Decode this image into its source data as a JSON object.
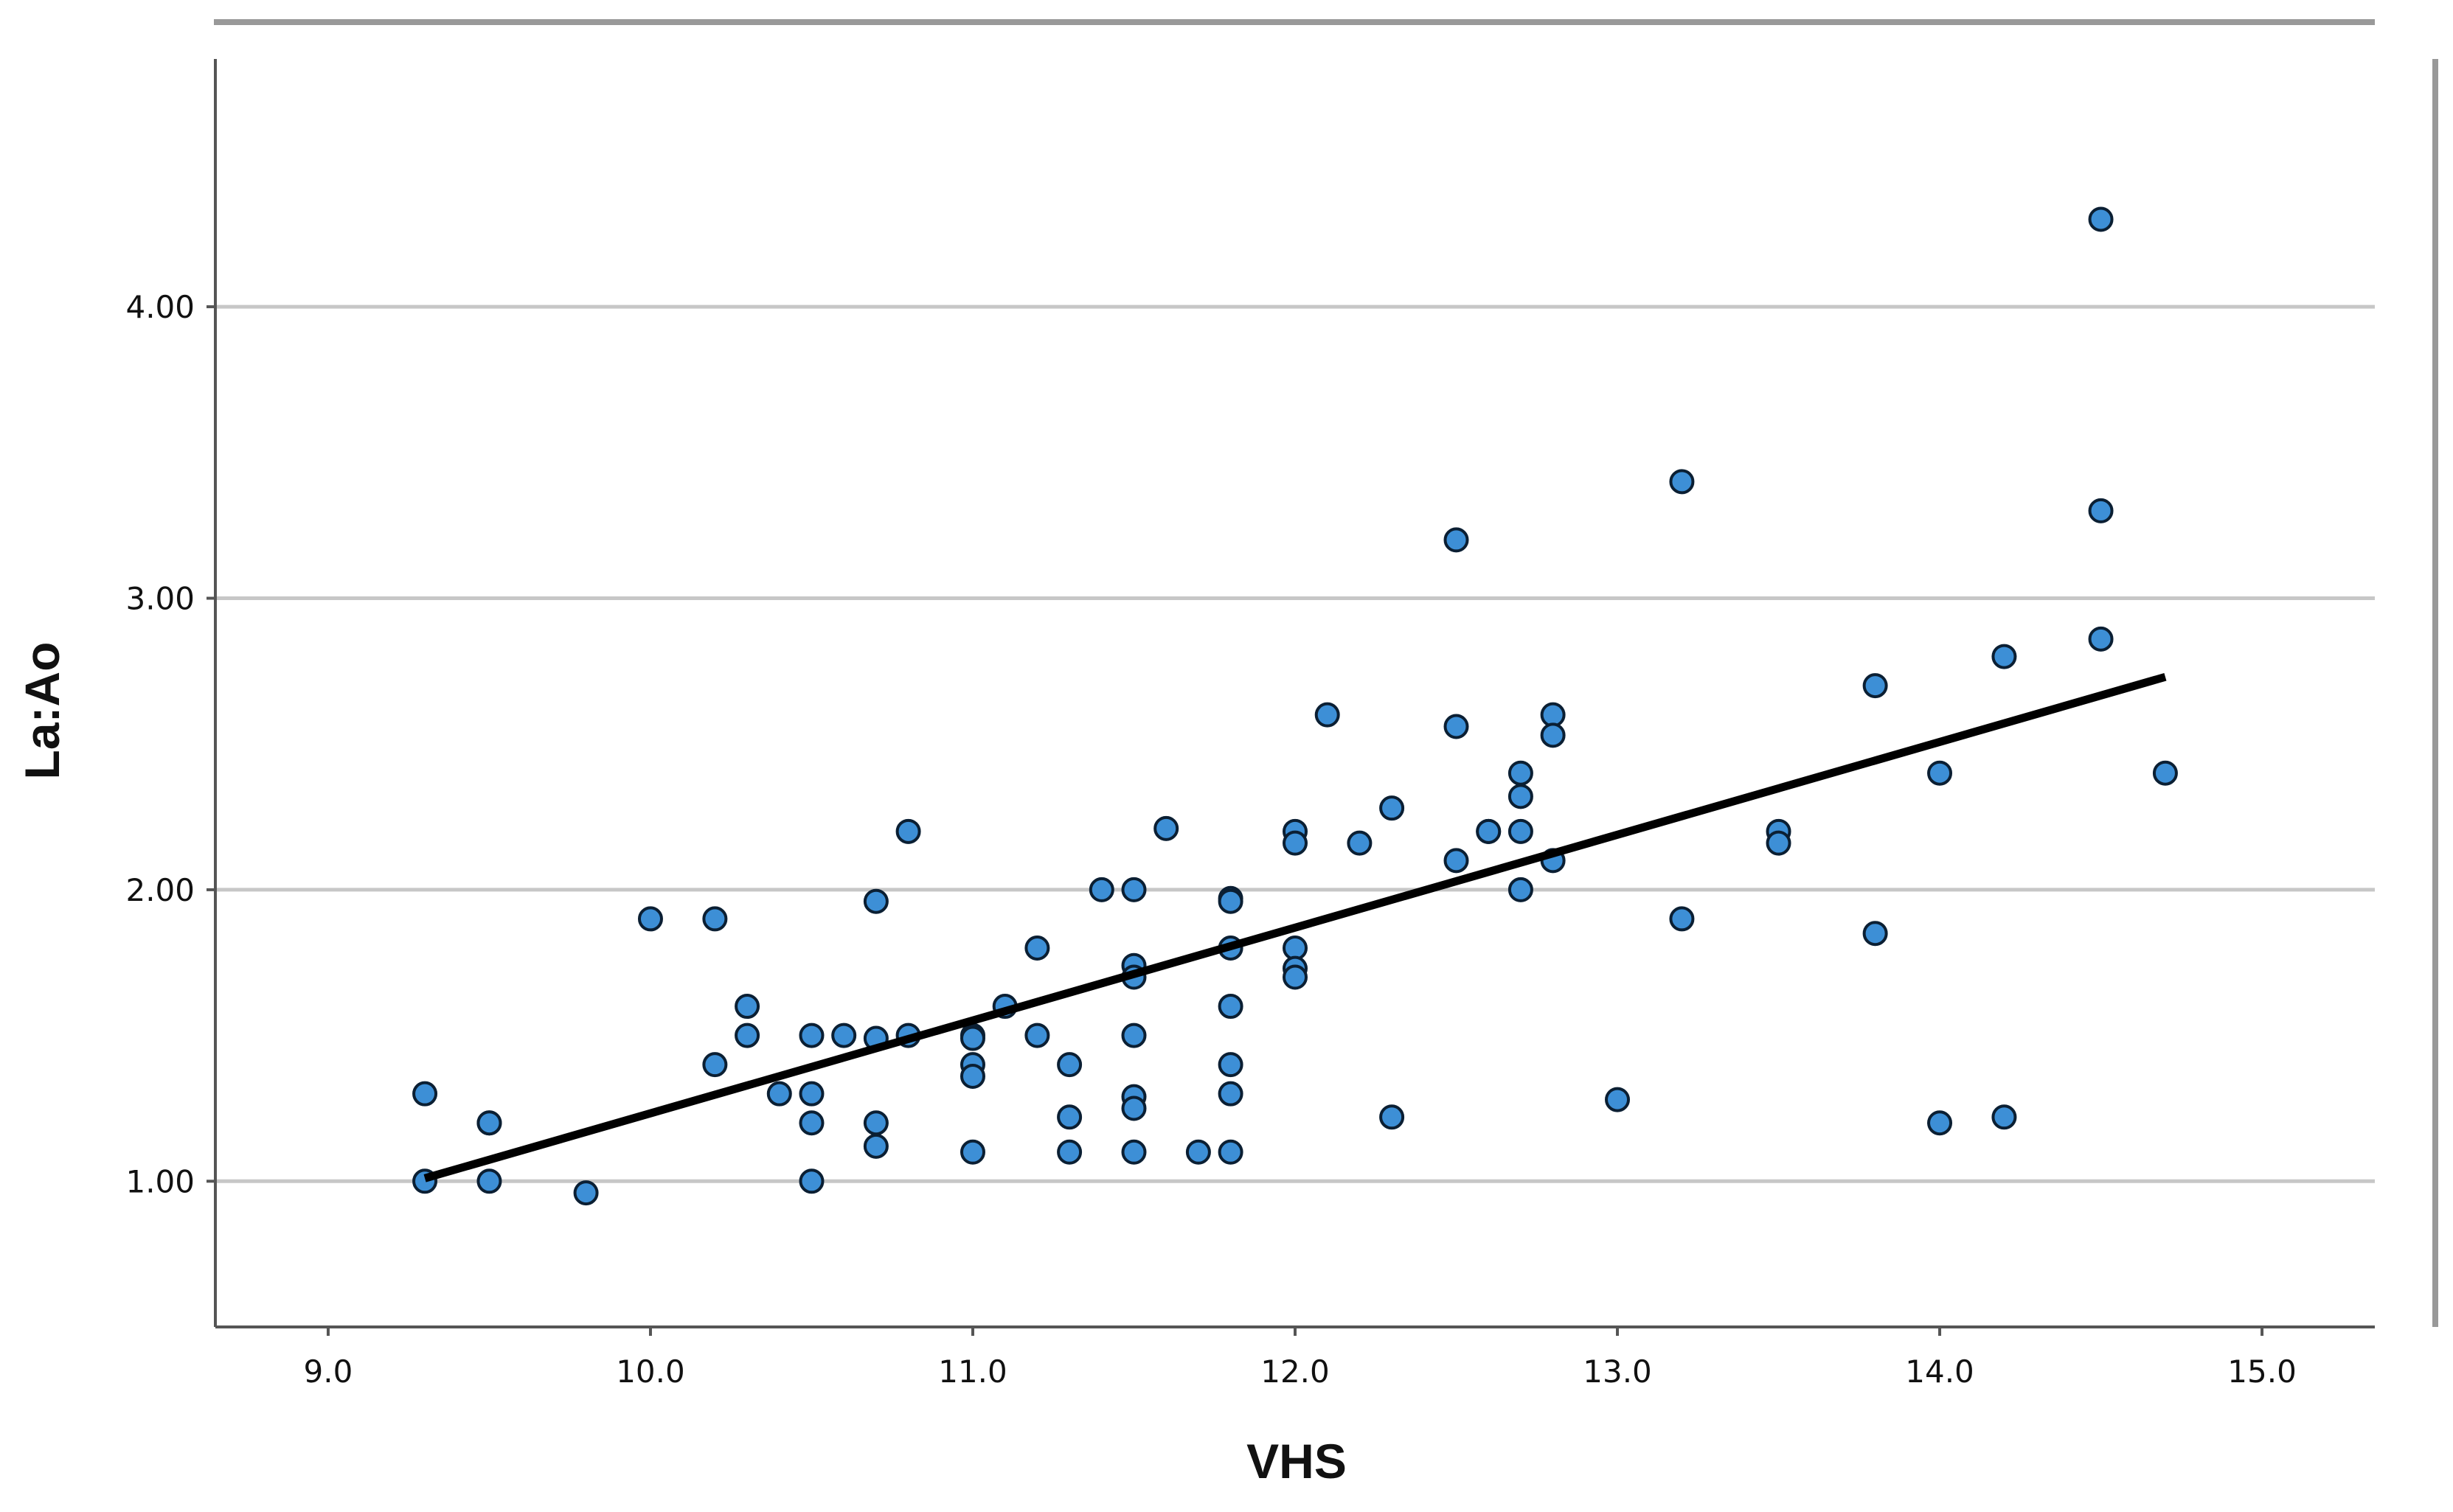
{
  "chart_data": {
    "type": "scatter",
    "title": "",
    "xlabel": "VHS",
    "ylabel": "La:Ao",
    "xlim": [
      8.65,
      15.35
    ],
    "ylim": [
      0.5,
      4.85
    ],
    "xticks": [
      "9.0",
      "10.0",
      "11.0",
      "12.0",
      "13.0",
      "14.0",
      "15.0"
    ],
    "yticks": [
      "1.00",
      "2.00",
      "3.00",
      "4.00"
    ],
    "grid": "horizontal",
    "marker_color": "#3d8fd6",
    "marker_edge_color": "#0b1f33",
    "fit_line_color": "#000000",
    "fit_line": {
      "x": [
        9.3,
        14.7
      ],
      "y": [
        1.01,
        2.73
      ]
    },
    "points": [
      {
        "x": 9.3,
        "y": 1.3
      },
      {
        "x": 9.3,
        "y": 1.0
      },
      {
        "x": 9.5,
        "y": 1.2
      },
      {
        "x": 9.5,
        "y": 1.2
      },
      {
        "x": 9.5,
        "y": 1.0
      },
      {
        "x": 9.8,
        "y": 0.96
      },
      {
        "x": 10.0,
        "y": 1.9
      },
      {
        "x": 10.2,
        "y": 1.9
      },
      {
        "x": 10.2,
        "y": 1.4
      },
      {
        "x": 10.3,
        "y": 1.6
      },
      {
        "x": 10.3,
        "y": 1.5
      },
      {
        "x": 10.4,
        "y": 1.3
      },
      {
        "x": 10.5,
        "y": 1.5
      },
      {
        "x": 10.5,
        "y": 1.3
      },
      {
        "x": 10.5,
        "y": 1.2
      },
      {
        "x": 10.5,
        "y": 1.0
      },
      {
        "x": 10.6,
        "y": 1.5
      },
      {
        "x": 10.7,
        "y": 1.96
      },
      {
        "x": 10.7,
        "y": 1.49
      },
      {
        "x": 10.7,
        "y": 1.2
      },
      {
        "x": 10.7,
        "y": 1.12
      },
      {
        "x": 10.8,
        "y": 2.2
      },
      {
        "x": 10.8,
        "y": 1.5
      },
      {
        "x": 11.0,
        "y": 1.5
      },
      {
        "x": 11.0,
        "y": 1.49
      },
      {
        "x": 11.0,
        "y": 1.4
      },
      {
        "x": 11.0,
        "y": 1.36
      },
      {
        "x": 11.0,
        "y": 1.1
      },
      {
        "x": 11.1,
        "y": 1.6
      },
      {
        "x": 11.2,
        "y": 1.8
      },
      {
        "x": 11.2,
        "y": 1.5
      },
      {
        "x": 11.3,
        "y": 1.4
      },
      {
        "x": 11.3,
        "y": 1.22
      },
      {
        "x": 11.3,
        "y": 1.1
      },
      {
        "x": 11.4,
        "y": 2.0
      },
      {
        "x": 11.5,
        "y": 2.0
      },
      {
        "x": 11.5,
        "y": 1.74
      },
      {
        "x": 11.5,
        "y": 1.7
      },
      {
        "x": 11.5,
        "y": 1.5
      },
      {
        "x": 11.5,
        "y": 1.29
      },
      {
        "x": 11.5,
        "y": 1.25
      },
      {
        "x": 11.5,
        "y": 1.1
      },
      {
        "x": 11.6,
        "y": 2.21
      },
      {
        "x": 11.7,
        "y": 1.1
      },
      {
        "x": 11.8,
        "y": 1.97
      },
      {
        "x": 11.8,
        "y": 1.96
      },
      {
        "x": 11.8,
        "y": 1.8
      },
      {
        "x": 11.8,
        "y": 1.6
      },
      {
        "x": 11.8,
        "y": 1.4
      },
      {
        "x": 11.8,
        "y": 1.3
      },
      {
        "x": 11.8,
        "y": 1.1
      },
      {
        "x": 12.0,
        "y": 2.2
      },
      {
        "x": 12.0,
        "y": 2.16
      },
      {
        "x": 12.0,
        "y": 1.8
      },
      {
        "x": 12.0,
        "y": 1.73
      },
      {
        "x": 12.0,
        "y": 1.7
      },
      {
        "x": 12.1,
        "y": 2.6
      },
      {
        "x": 12.2,
        "y": 2.16
      },
      {
        "x": 12.3,
        "y": 2.28
      },
      {
        "x": 12.3,
        "y": 1.22
      },
      {
        "x": 12.5,
        "y": 3.2
      },
      {
        "x": 12.5,
        "y": 2.56
      },
      {
        "x": 12.5,
        "y": 2.1
      },
      {
        "x": 12.6,
        "y": 2.2
      },
      {
        "x": 12.6,
        "y": 2.2
      },
      {
        "x": 12.7,
        "y": 2.4
      },
      {
        "x": 12.7,
        "y": 2.32
      },
      {
        "x": 12.7,
        "y": 2.2
      },
      {
        "x": 12.7,
        "y": 2.0
      },
      {
        "x": 12.8,
        "y": 2.6
      },
      {
        "x": 12.8,
        "y": 2.53
      },
      {
        "x": 12.8,
        "y": 2.1
      },
      {
        "x": 13.0,
        "y": 1.28
      },
      {
        "x": 13.2,
        "y": 3.4
      },
      {
        "x": 13.2,
        "y": 1.9
      },
      {
        "x": 13.5,
        "y": 2.2
      },
      {
        "x": 13.5,
        "y": 2.16
      },
      {
        "x": 13.8,
        "y": 2.7
      },
      {
        "x": 13.8,
        "y": 1.85
      },
      {
        "x": 14.0,
        "y": 2.4
      },
      {
        "x": 14.0,
        "y": 1.2
      },
      {
        "x": 14.2,
        "y": 2.8
      },
      {
        "x": 14.2,
        "y": 1.22
      },
      {
        "x": 14.5,
        "y": 4.3
      },
      {
        "x": 14.5,
        "y": 3.3
      },
      {
        "x": 14.5,
        "y": 2.86
      },
      {
        "x": 14.7,
        "y": 2.4
      }
    ]
  }
}
